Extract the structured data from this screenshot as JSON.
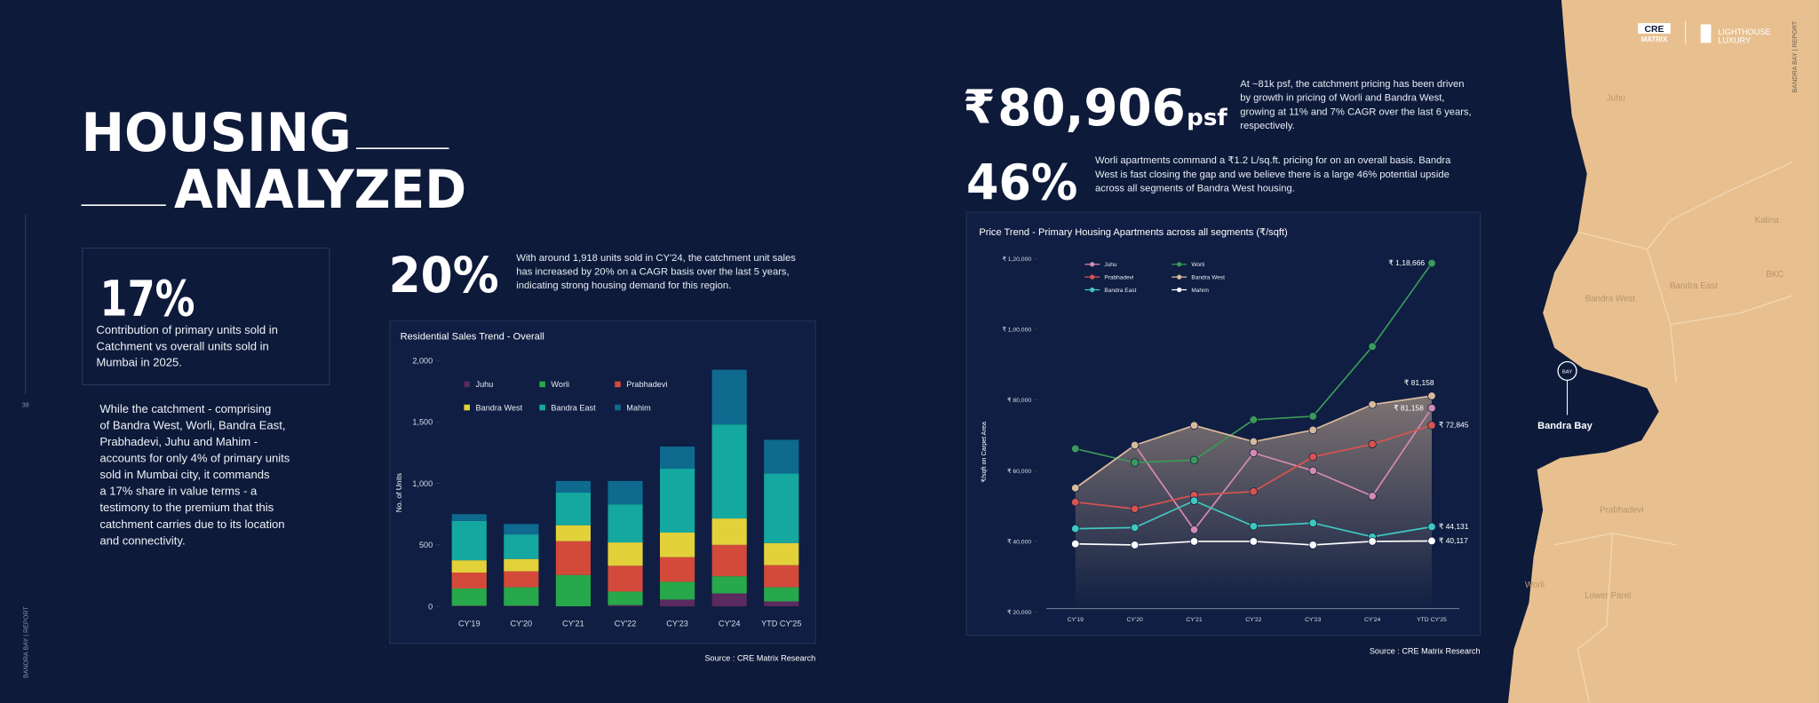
{
  "header": {
    "title_line1": "HOUSING",
    "title_line2": "ANALYZED"
  },
  "side_label": "BANDRA BAY | REPORT",
  "page_number": "38",
  "logo": {
    "brand1": "CRE",
    "brand1_sub": "MATRIX",
    "brand2": "LIGHTHOUSE",
    "brand2_sub": "LUXURY"
  },
  "stat_17": {
    "value": "17%",
    "text": [
      "Contribution of primary units sold in",
      "Catchment vs overall units sold in",
      "Mumbai in 2025."
    ]
  },
  "body_text": [
    "While the catchment - comprising",
    "of Bandra West, Worli, Bandra East,",
    "Prabhadevi, Juhu and Mahim -",
    "accounts for only 4% of primary units",
    "sold in Mumbai city, it commands",
    "a 17% share in value terms - a",
    "testimony to the premium that this",
    "catchment carries due to its location",
    "and connectivity."
  ],
  "stat_20": {
    "value": "20%",
    "text": [
      "With around 1,918 units sold in CY'24, the catchment unit sales",
      "has increased by 20% on a CAGR basis over the last 5 years,",
      "indicating strong housing demand for this region."
    ]
  },
  "stat_psf": {
    "symbol": "₹",
    "value": "80,906",
    "unit": "psf",
    "text": [
      "At ~81k psf, the catchment pricing has been driven",
      "by growth in pricing of Worli and Bandra West,",
      "growing at 11% and 7% CAGR over the last 6 years,",
      "respectively."
    ]
  },
  "stat_46": {
    "value": "46%",
    "text": [
      "Worli apartments command a ₹1.2 L/sq.ft. pricing for on an overall basis. Bandra",
      "West is fast closing the gap and we believe there is a large 46% potential upside",
      "across all segments of Bandra West housing."
    ]
  },
  "chart_data": [
    {
      "type": "bar",
      "stacked": true,
      "title": "Residential Sales Trend - Overall",
      "y_label": "No. of Units",
      "source": "Source : CRE Matrix Research",
      "categories": [
        "CY'19",
        "CY'20",
        "CY'21",
        "CY'22",
        "CY'23",
        "CY'24",
        "YTD CY'25"
      ],
      "series": [
        {
          "name": "Juhu",
          "color": "#5b2a5f",
          "values": [
            5,
            5,
            0,
            10,
            55,
            105,
            40
          ]
        },
        {
          "name": "Worli",
          "color": "#27a84a",
          "values": [
            140,
            150,
            255,
            110,
            145,
            140,
            115
          ]
        },
        {
          "name": "Prabhadevi",
          "color": "#d44a3a",
          "values": [
            130,
            130,
            275,
            210,
            200,
            255,
            180
          ]
        },
        {
          "name": "Bandra West",
          "color": "#e3d13a",
          "values": [
            100,
            100,
            130,
            190,
            200,
            215,
            180
          ]
        },
        {
          "name": "Bandra East",
          "color": "#14a8a0",
          "values": [
            320,
            200,
            265,
            310,
            520,
            765,
            565
          ]
        },
        {
          "name": "Mahim",
          "color": "#0f6a8f",
          "values": [
            55,
            85,
            95,
            190,
            180,
            445,
            275
          ]
        }
      ],
      "ylim": [
        0,
        2000
      ],
      "yticks": [
        0,
        500,
        {
          "value": 1000,
          "label": "1,000"
        },
        {
          "value": 1500,
          "label": "1,500"
        },
        {
          "value": 2000,
          "label": "2,000"
        }
      ]
    },
    {
      "type": "line",
      "title": "Price Trend - Primary Housing Apartments across all segments (₹/sqft)",
      "y_label": "₹/sqft on Carpet Area",
      "source": "Source : CRE Matrix Research",
      "categories": [
        "CY'19",
        "CY'20",
        "CY'21",
        "CY'22",
        "CY'23",
        "CY'24",
        "YTD CY'25"
      ],
      "series": [
        {
          "name": "Juhu",
          "color": "#d48bb0",
          "values": [
            55000,
            67200,
            43300,
            65000,
            60000,
            52800,
            77700
          ]
        },
        {
          "name": "Worli",
          "color": "#3a9a5a",
          "values": [
            66200,
            62300,
            63000,
            74400,
            75400,
            95100,
            118666
          ],
          "value_labels": [
            null,
            null,
            null,
            null,
            null,
            null,
            "₹ 1,18,666"
          ]
        },
        {
          "name": "Prabhadevi",
          "color": "#d9534f",
          "values": [
            51100,
            49200,
            53100,
            54100,
            63900,
            67500,
            72845
          ],
          "value_labels": [
            null,
            null,
            null,
            null,
            null,
            null,
            "₹ 72,845"
          ]
        },
        {
          "name": "Bandra West",
          "color": "#d9b99b",
          "area": true,
          "values": [
            55100,
            67200,
            72800,
            68200,
            71500,
            78700,
            81158
          ],
          "value_labels": [
            null,
            null,
            null,
            null,
            null,
            null,
            "₹ 81,158"
          ]
        },
        {
          "name": "Bandra East",
          "color": "#40c8c0",
          "values": [
            43600,
            43900,
            51500,
            44300,
            45200,
            41300,
            44131
          ],
          "value_labels": [
            null,
            null,
            null,
            null,
            null,
            null,
            "₹ 44,131"
          ]
        },
        {
          "name": "Mahim",
          "color": "#ffffff",
          "values": [
            39300,
            39000,
            40000,
            40000,
            39000,
            40000,
            40117
          ],
          "value_labels": [
            null,
            null,
            null,
            null,
            null,
            null,
            "₹ 40,117"
          ]
        }
      ],
      "annotations": [
        {
          "text": "₹ 81,158"
        }
      ],
      "ylim": [
        20000,
        120000
      ],
      "yticks": [
        {
          "value": 20000,
          "label": "₹ 20,000"
        },
        {
          "value": 40000,
          "label": "₹ 40,000"
        },
        {
          "value": 60000,
          "label": "₹ 60,000"
        },
        {
          "value": 80000,
          "label": "₹ 80,000"
        },
        {
          "value": 100000,
          "label": "₹ 1,00,000"
        },
        {
          "value": 120000,
          "label": "₹ 1,20,000"
        }
      ]
    }
  ],
  "map": {
    "labels": [
      "Juhu",
      "Kalina",
      "Bandra East",
      "BKC",
      "Bandra West",
      "Prabhadevi",
      "Worli",
      "Lower Parel"
    ],
    "marker": "BAY",
    "location": "Bandra Bay"
  }
}
